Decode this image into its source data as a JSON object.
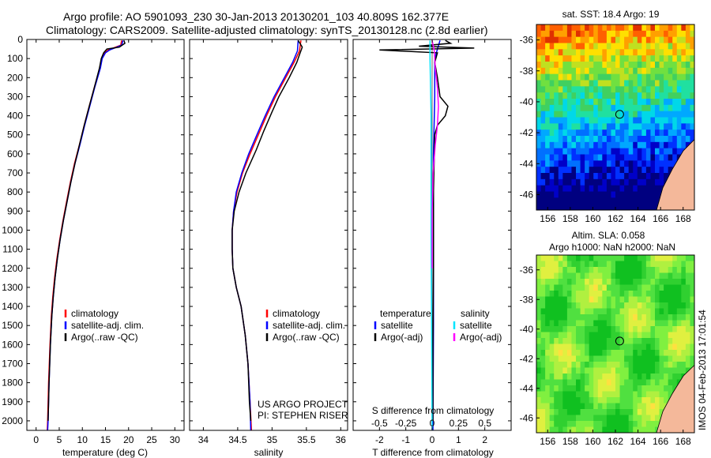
{
  "header": {
    "line1": "Argo profile: AO 5901093_230 30-Jan-2013 20130201_103 40.809S 162.377E",
    "line2": "Climatology: CARS2009. Satellite-adjusted climatology: synTS_20130128.nc (2.8d earlier)"
  },
  "colors": {
    "climatology": "#ff0000",
    "satellite": "#0000ff",
    "argo": "#000000",
    "t_satellite": "#0000ff",
    "s_satellite": "#00e5ff",
    "s_argo": "#ff00ff",
    "land": "#f4b89a"
  },
  "depth_axis": {
    "ylim": [
      0,
      2050
    ],
    "ticks": [
      "0",
      "100",
      "200",
      "300",
      "400",
      "500",
      "600",
      "700",
      "800",
      "900",
      "1000",
      "1100",
      "1200",
      "1300",
      "1400",
      "1500",
      "1600",
      "1700",
      "1800",
      "1900",
      "2000"
    ]
  },
  "chart_data": [
    {
      "type": "line",
      "id": "temperature",
      "xlabel": "temperature (deg C)",
      "xlim": [
        -2,
        32
      ],
      "xticks": [
        "0",
        "5",
        "10",
        "15",
        "20",
        "25",
        "30"
      ],
      "legend": [
        "climatology",
        "satellite-adj. clim.",
        "Argo(..raw -QC)"
      ],
      "series": [
        {
          "name": "climatology",
          "points": [
            [
              18.5,
              5
            ],
            [
              18.3,
              30
            ],
            [
              15.6,
              55
            ],
            [
              14.8,
              70
            ],
            [
              14.2,
              100
            ],
            [
              13.8,
              150
            ],
            [
              12.6,
              250
            ],
            [
              11.5,
              350
            ],
            [
              10.4,
              450
            ],
            [
              9.4,
              550
            ],
            [
              8.3,
              650
            ],
            [
              7.4,
              750
            ],
            [
              6.6,
              850
            ],
            [
              5.8,
              950
            ],
            [
              5.1,
              1050
            ],
            [
              4.5,
              1150
            ],
            [
              4.0,
              1250
            ],
            [
              3.6,
              1350
            ],
            [
              3.3,
              1450
            ],
            [
              3.0,
              1600
            ],
            [
              2.7,
              1800
            ],
            [
              2.5,
              2000
            ],
            [
              2.4,
              2050
            ]
          ]
        },
        {
          "name": "satellite-adj. clim.",
          "points": [
            [
              18.8,
              5
            ],
            [
              18.5,
              30
            ],
            [
              15.9,
              55
            ],
            [
              15.0,
              70
            ],
            [
              14.3,
              100
            ],
            [
              13.9,
              150
            ],
            [
              12.7,
              250
            ],
            [
              11.6,
              350
            ],
            [
              10.5,
              450
            ],
            [
              9.5,
              550
            ],
            [
              8.4,
              650
            ],
            [
              7.5,
              750
            ],
            [
              6.7,
              850
            ],
            [
              5.9,
              950
            ],
            [
              5.2,
              1050
            ],
            [
              4.6,
              1150
            ],
            [
              4.1,
              1250
            ],
            [
              3.7,
              1350
            ],
            [
              3.4,
              1450
            ],
            [
              3.1,
              1600
            ],
            [
              2.8,
              1800
            ],
            [
              2.6,
              2000
            ],
            [
              2.5,
              2050
            ]
          ]
        },
        {
          "name": "Argo(..raw -QC)",
          "points": [
            [
              19.0,
              5
            ],
            [
              19.2,
              20
            ],
            [
              18.0,
              40
            ],
            [
              15.3,
              50
            ],
            [
              14.6,
              70
            ],
            [
              14.1,
              100
            ],
            [
              13.7,
              150
            ],
            [
              12.6,
              250
            ],
            [
              11.5,
              350
            ],
            [
              10.4,
              450
            ],
            [
              9.4,
              550
            ],
            [
              8.4,
              650
            ],
            [
              7.5,
              750
            ],
            [
              6.7,
              850
            ],
            [
              5.9,
              950
            ],
            [
              5.2,
              1050
            ],
            [
              4.6,
              1150
            ],
            [
              4.1,
              1250
            ],
            [
              3.7,
              1350
            ],
            [
              3.4,
              1450
            ],
            [
              3.1,
              1600
            ],
            [
              2.8,
              1800
            ],
            [
              2.6,
              2000
            ]
          ]
        }
      ]
    },
    {
      "type": "line",
      "id": "salinity",
      "xlabel": "salinity",
      "xlim": [
        33.8,
        36.1
      ],
      "xticks": [
        "34",
        "34.5",
        "35",
        "35.5",
        "36"
      ],
      "legend": [
        "climatology",
        "satellite-adj. clim.",
        "Argo(..raw -QC)"
      ],
      "series": [
        {
          "name": "climatology",
          "points": [
            [
              35.42,
              5
            ],
            [
              35.4,
              60
            ],
            [
              35.32,
              120
            ],
            [
              35.2,
              200
            ],
            [
              35.05,
              300
            ],
            [
              34.92,
              400
            ],
            [
              34.8,
              500
            ],
            [
              34.68,
              600
            ],
            [
              34.57,
              700
            ],
            [
              34.49,
              800
            ],
            [
              34.44,
              900
            ],
            [
              34.42,
              1000
            ],
            [
              34.42,
              1100
            ],
            [
              34.43,
              1200
            ],
            [
              34.48,
              1300
            ],
            [
              34.55,
              1400
            ],
            [
              34.61,
              1550
            ],
            [
              34.65,
              1700
            ],
            [
              34.68,
              1900
            ],
            [
              34.7,
              2050
            ]
          ]
        },
        {
          "name": "satellite-adj. clim.",
          "points": [
            [
              35.38,
              5
            ],
            [
              35.37,
              60
            ],
            [
              35.3,
              120
            ],
            [
              35.18,
              200
            ],
            [
              35.03,
              300
            ],
            [
              34.9,
              400
            ],
            [
              34.78,
              500
            ],
            [
              34.66,
              600
            ],
            [
              34.56,
              700
            ],
            [
              34.48,
              800
            ],
            [
              34.44,
              900
            ],
            [
              34.42,
              1000
            ],
            [
              34.42,
              1100
            ],
            [
              34.43,
              1200
            ],
            [
              34.48,
              1300
            ],
            [
              34.55,
              1400
            ],
            [
              34.61,
              1550
            ],
            [
              34.65,
              1700
            ],
            [
              34.68,
              1900
            ],
            [
              34.69,
              2050
            ]
          ]
        },
        {
          "name": "Argo(..raw -QC)",
          "points": [
            [
              35.38,
              5
            ],
            [
              35.44,
              40
            ],
            [
              35.4,
              80
            ],
            [
              35.36,
              120
            ],
            [
              35.25,
              200
            ],
            [
              35.1,
              300
            ],
            [
              35.0,
              380
            ],
            [
              34.88,
              480
            ],
            [
              34.77,
              580
            ],
            [
              34.62,
              700
            ],
            [
              34.52,
              800
            ],
            [
              34.45,
              900
            ],
            [
              34.42,
              1000
            ],
            [
              34.42,
              1100
            ],
            [
              34.43,
              1200
            ],
            [
              34.48,
              1300
            ],
            [
              34.55,
              1400
            ],
            [
              34.61,
              1550
            ],
            [
              34.65,
              1700
            ],
            [
              34.67,
              1900
            ],
            [
              34.69,
              2000
            ]
          ]
        }
      ]
    },
    {
      "type": "line",
      "id": "differences",
      "xlabel_top": "S difference from climatology",
      "xticks_top": [
        "-0.5",
        "-0.25",
        "0",
        "0.25",
        "0.5"
      ],
      "xlabel": "T difference from climatology",
      "xticks": [
        "-2",
        "-1",
        "0",
        "1",
        "2"
      ],
      "xlim_T": [
        -3,
        3
      ],
      "xlim_S": [
        -0.75,
        0.75
      ],
      "legend_titles": [
        "temperature",
        "salinity"
      ],
      "legend": [
        "satellite",
        "Argo(-adj)",
        "satellite",
        "Argo(-adj)"
      ],
      "series": [
        {
          "name": "temperature satellite",
          "axis": "T",
          "points": [
            [
              0.3,
              5
            ],
            [
              0.2,
              50
            ],
            [
              0.1,
              100
            ],
            [
              0.1,
              300
            ],
            [
              0.05,
              600
            ],
            [
              0.05,
              1000
            ],
            [
              0.05,
              1500
            ],
            [
              0.03,
              2050
            ]
          ]
        },
        {
          "name": "temperature Argo(-adj)",
          "axis": "T",
          "points": [
            [
              0.5,
              5
            ],
            [
              0.7,
              20
            ],
            [
              -0.5,
              35
            ],
            [
              1.6,
              45
            ],
            [
              -2.0,
              55
            ],
            [
              0.2,
              70
            ],
            [
              0.1,
              120
            ],
            [
              0.2,
              200
            ],
            [
              0.3,
              300
            ],
            [
              0.6,
              350
            ],
            [
              0.5,
              400
            ],
            [
              0.2,
              450
            ],
            [
              0.1,
              500
            ],
            [
              0.05,
              800
            ],
            [
              0.05,
              1200
            ],
            [
              0.03,
              1600
            ],
            [
              0.03,
              2000
            ]
          ]
        },
        {
          "name": "salinity satellite",
          "axis": "S",
          "points": [
            [
              -0.02,
              5
            ],
            [
              -0.02,
              100
            ],
            [
              -0.01,
              400
            ],
            [
              -0.01,
              1000
            ],
            [
              0.0,
              2050
            ]
          ]
        },
        {
          "name": "salinity Argo(-adj)",
          "axis": "S",
          "points": [
            [
              0.0,
              5
            ],
            [
              0.02,
              60
            ],
            [
              0.03,
              150
            ],
            [
              0.05,
              250
            ],
            [
              0.06,
              350
            ],
            [
              0.05,
              450
            ],
            [
              0.03,
              550
            ],
            [
              0.01,
              700
            ],
            [
              0.0,
              900
            ],
            [
              0.0,
              1200
            ]
          ]
        }
      ]
    }
  ],
  "notes": {
    "project": "US ARGO PROJECT",
    "pi": "PI: STEPHEN RISER"
  },
  "maps": {
    "sst": {
      "title": "sat. SST: 18.4 Argo: 19",
      "yticks": [
        "-36",
        "-38",
        "-40",
        "-42",
        "-44",
        "-46"
      ],
      "xticks": [
        "156",
        "158",
        "160",
        "162",
        "164",
        "166",
        "168"
      ],
      "lat_range": [
        -47,
        -35
      ],
      "lon_range": [
        155,
        169
      ]
    },
    "sla": {
      "title1": "Altim. SLA: 0.058",
      "title2": "Argo h1000: NaN h2000: NaN",
      "yticks": [
        "-36",
        "-38",
        "-40",
        "-42",
        "-44",
        "-46"
      ],
      "xticks": [
        "156",
        "158",
        "160",
        "162",
        "164",
        "166",
        "168"
      ]
    },
    "argo_position": {
      "lat": -40.809,
      "lon": 162.377
    }
  },
  "side_label": "IMOS 04-Feb-2013 17:01:54"
}
